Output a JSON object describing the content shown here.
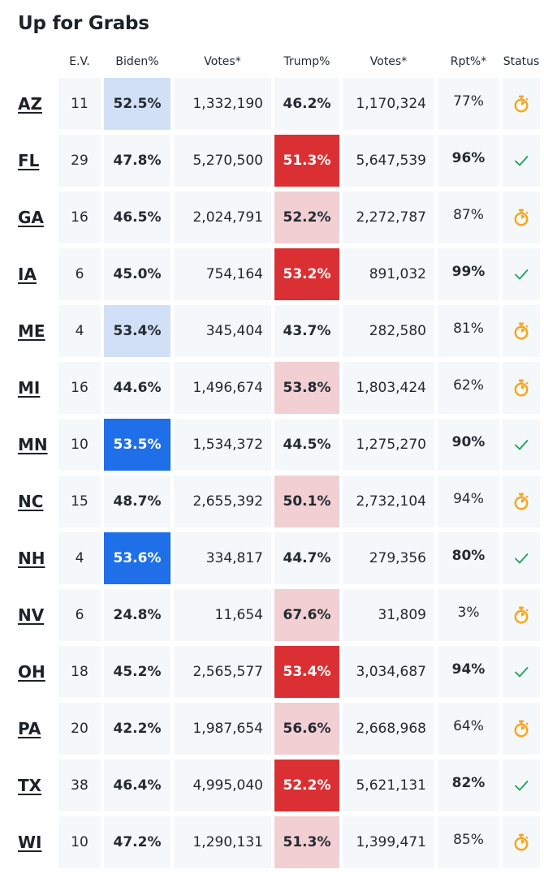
{
  "title": "Up for Grabs",
  "headers": {
    "ev": "E.V.",
    "biden_pct": "Biden%",
    "biden_votes": "Votes*",
    "trump_pct": "Trump%",
    "trump_votes": "Votes*",
    "reported": "Rpt%*",
    "status": "Status"
  },
  "colors": {
    "biden_light": "#d2e0f7",
    "biden_strong": "#1e6fe8",
    "trump_light": "#f1cfd3",
    "trump_strong": "#db3033",
    "pending_icon": "#f5a623",
    "called_icon": "#1aa35a"
  },
  "rows": [
    {
      "state": "AZ",
      "ev": "11",
      "biden_pct": "52.5%",
      "biden_votes": "1,332,190",
      "trump_pct": "46.2%",
      "trump_votes": "1,170,324",
      "reported": "77%",
      "reported_bold": false,
      "biden_shade": "light",
      "trump_shade": "none",
      "status": "timer-icon"
    },
    {
      "state": "FL",
      "ev": "29",
      "biden_pct": "47.8%",
      "biden_votes": "5,270,500",
      "trump_pct": "51.3%",
      "trump_votes": "5,647,539",
      "reported": "96%",
      "reported_bold": true,
      "biden_shade": "none",
      "trump_shade": "strong",
      "status": "check-icon"
    },
    {
      "state": "GA",
      "ev": "16",
      "biden_pct": "46.5%",
      "biden_votes": "2,024,791",
      "trump_pct": "52.2%",
      "trump_votes": "2,272,787",
      "reported": "87%",
      "reported_bold": false,
      "biden_shade": "none",
      "trump_shade": "light",
      "status": "timer-icon"
    },
    {
      "state": "IA",
      "ev": "6",
      "biden_pct": "45.0%",
      "biden_votes": "754,164",
      "trump_pct": "53.2%",
      "trump_votes": "891,032",
      "reported": "99%",
      "reported_bold": true,
      "biden_shade": "none",
      "trump_shade": "strong",
      "status": "check-icon"
    },
    {
      "state": "ME",
      "ev": "4",
      "biden_pct": "53.4%",
      "biden_votes": "345,404",
      "trump_pct": "43.7%",
      "trump_votes": "282,580",
      "reported": "81%",
      "reported_bold": false,
      "biden_shade": "light",
      "trump_shade": "none",
      "status": "timer-icon"
    },
    {
      "state": "MI",
      "ev": "16",
      "biden_pct": "44.6%",
      "biden_votes": "1,496,674",
      "trump_pct": "53.8%",
      "trump_votes": "1,803,424",
      "reported": "62%",
      "reported_bold": false,
      "biden_shade": "none",
      "trump_shade": "light",
      "status": "timer-icon"
    },
    {
      "state": "MN",
      "ev": "10",
      "biden_pct": "53.5%",
      "biden_votes": "1,534,372",
      "trump_pct": "44.5%",
      "trump_votes": "1,275,270",
      "reported": "90%",
      "reported_bold": true,
      "biden_shade": "strong",
      "trump_shade": "none",
      "status": "check-icon"
    },
    {
      "state": "NC",
      "ev": "15",
      "biden_pct": "48.7%",
      "biden_votes": "2,655,392",
      "trump_pct": "50.1%",
      "trump_votes": "2,732,104",
      "reported": "94%",
      "reported_bold": false,
      "biden_shade": "none",
      "trump_shade": "light",
      "status": "timer-icon"
    },
    {
      "state": "NH",
      "ev": "4",
      "biden_pct": "53.6%",
      "biden_votes": "334,817",
      "trump_pct": "44.7%",
      "trump_votes": "279,356",
      "reported": "80%",
      "reported_bold": true,
      "biden_shade": "strong",
      "trump_shade": "none",
      "status": "check-icon"
    },
    {
      "state": "NV",
      "ev": "6",
      "biden_pct": "24.8%",
      "biden_votes": "11,654",
      "trump_pct": "67.6%",
      "trump_votes": "31,809",
      "reported": "3%",
      "reported_bold": false,
      "biden_shade": "none",
      "trump_shade": "light",
      "status": "timer-icon"
    },
    {
      "state": "OH",
      "ev": "18",
      "biden_pct": "45.2%",
      "biden_votes": "2,565,577",
      "trump_pct": "53.4%",
      "trump_votes": "3,034,687",
      "reported": "94%",
      "reported_bold": true,
      "biden_shade": "none",
      "trump_shade": "strong",
      "status": "check-icon"
    },
    {
      "state": "PA",
      "ev": "20",
      "biden_pct": "42.2%",
      "biden_votes": "1,987,654",
      "trump_pct": "56.6%",
      "trump_votes": "2,668,968",
      "reported": "64%",
      "reported_bold": false,
      "biden_shade": "none",
      "trump_shade": "light",
      "status": "timer-icon"
    },
    {
      "state": "TX",
      "ev": "38",
      "biden_pct": "46.4%",
      "biden_votes": "4,995,040",
      "trump_pct": "52.2%",
      "trump_votes": "5,621,131",
      "reported": "82%",
      "reported_bold": true,
      "biden_shade": "none",
      "trump_shade": "strong",
      "status": "check-icon"
    },
    {
      "state": "WI",
      "ev": "10",
      "biden_pct": "47.2%",
      "biden_votes": "1,290,131",
      "trump_pct": "51.3%",
      "trump_votes": "1,399,471",
      "reported": "85%",
      "reported_bold": false,
      "biden_shade": "none",
      "trump_shade": "light",
      "status": "timer-icon"
    }
  ]
}
